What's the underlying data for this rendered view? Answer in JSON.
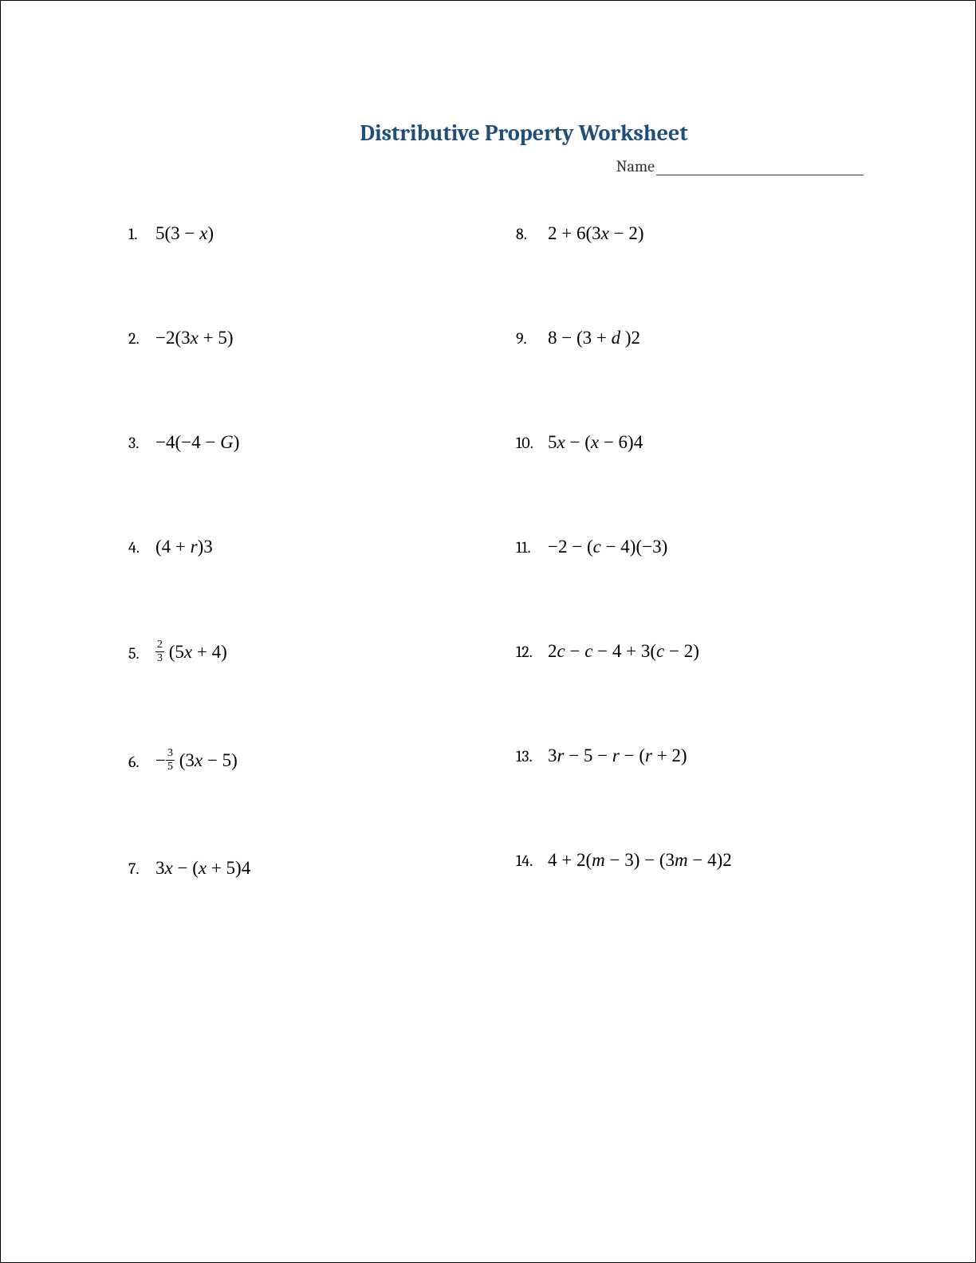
{
  "title": "Distributive Property Worksheet",
  "title_color": "#1f4e79",
  "title_fontsize": 28,
  "name_label": "Name",
  "text_color": "#000000",
  "body_fontsize": 22,
  "problems_left": [
    {
      "number": "1.",
      "html": "5<span class='bigp'>(</span>3 − <span class='var'>x</span><span class='bigp'>)</span>"
    },
    {
      "number": "2.",
      "html": "−2(3<span class='var'>x</span> + 5)"
    },
    {
      "number": "3.",
      "html": "−4(−4 − <span class='var'>G</span>)"
    },
    {
      "number": "4.",
      "html": "(4 + <span class='var'>r</span>)3"
    },
    {
      "number": "5.",
      "html": "<span class='frac'><span class='num'>2</span><span class='den'>3</span></span> (5<span class='var'>x</span> + 4)"
    },
    {
      "number": "6.",
      "html": "−<span class='frac'><span class='num'>3</span><span class='den'>5</span></span> (3<span class='var'>x</span> − 5)"
    },
    {
      "number": "7.",
      "html": "3<span class='var'>x</span> − (<span class='var'>x</span> + 5)4"
    }
  ],
  "problems_right": [
    {
      "number": "8.",
      "html": "2 + 6(3<span class='var'>x</span> − 2)"
    },
    {
      "number": "9.",
      "html": "8 − (3 + <span class='var'>d</span> )2"
    },
    {
      "number": "10.",
      "html": "5<span class='var'>x</span> − (<span class='var'>x</span> − 6)4"
    },
    {
      "number": "11.",
      "html": "−2 − (<span class='var'>c</span> − 4)(−3)"
    },
    {
      "number": "12.",
      "html": "2<span class='var'>c</span> − <span class='var'>c</span> − 4 + 3(<span class='var'>c</span> − 2)"
    },
    {
      "number": "13.",
      "html": "3<span class='var'>r</span> − 5 − <span class='var'>r</span> − (<span class='var'>r</span> + 2)"
    },
    {
      "number": "14.",
      "html": "4 + 2(<span class='var'>m</span> − 3) − (3<span class='var'>m</span> − 4)2"
    }
  ]
}
